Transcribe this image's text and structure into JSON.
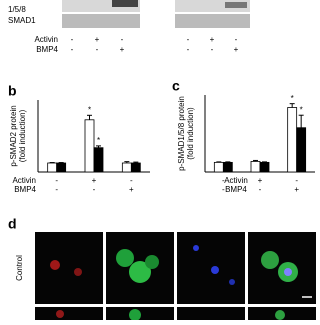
{
  "blots": {
    "top_label": "1/5/8",
    "bottom_label": "SMAD1",
    "rows": [
      {
        "label": "Activin",
        "signs": [
          "-",
          "+",
          "-"
        ]
      },
      {
        "label": "BMP4",
        "signs": [
          "-",
          "-",
          "+"
        ]
      }
    ]
  },
  "chart_data": [
    {
      "type": "bar",
      "panel": "b",
      "ylabel": [
        "p-SMAD2 protein",
        "(fold induction)"
      ],
      "ylim": [
        0,
        8
      ],
      "series": [
        {
          "color": "#ffffff",
          "values": [
            1,
            5.8,
            1
          ],
          "errors": [
            0.05,
            0.5,
            0.15
          ],
          "significance": [
            null,
            "*",
            null
          ]
        },
        {
          "color": "#000000",
          "values": [
            1,
            2.7,
            1
          ],
          "errors": [
            0.05,
            0.2,
            0.1
          ],
          "significance": [
            null,
            "*",
            null
          ]
        }
      ],
      "rows": [
        {
          "label": "Activin",
          "signs": [
            "-",
            "+",
            "-"
          ]
        },
        {
          "label": "BMP4",
          "signs": [
            "-",
            "-",
            "+"
          ]
        }
      ]
    },
    {
      "type": "bar",
      "panel": "c",
      "ylabel": [
        "p-SMAD1/5/8 protein",
        "(fold induction)"
      ],
      "ylim": [
        0,
        8
      ],
      "series": [
        {
          "color": "#ffffff",
          "values": [
            1,
            1.1,
            6.7
          ],
          "errors": [
            0.05,
            0.1,
            0.4
          ],
          "significance": [
            null,
            null,
            "*"
          ]
        },
        {
          "color": "#000000",
          "values": [
            1,
            1,
            4.6
          ],
          "errors": [
            0.05,
            0.05,
            1.3
          ],
          "significance": [
            null,
            null,
            "*"
          ]
        }
      ],
      "rows": [
        {
          "label": "Activin",
          "signs": [
            "-",
            "+",
            "-"
          ]
        },
        {
          "label": "BMP4",
          "signs": [
            "-",
            "-",
            "+"
          ]
        }
      ]
    }
  ],
  "micrographs": {
    "panel": "d",
    "row_label": "Control"
  }
}
